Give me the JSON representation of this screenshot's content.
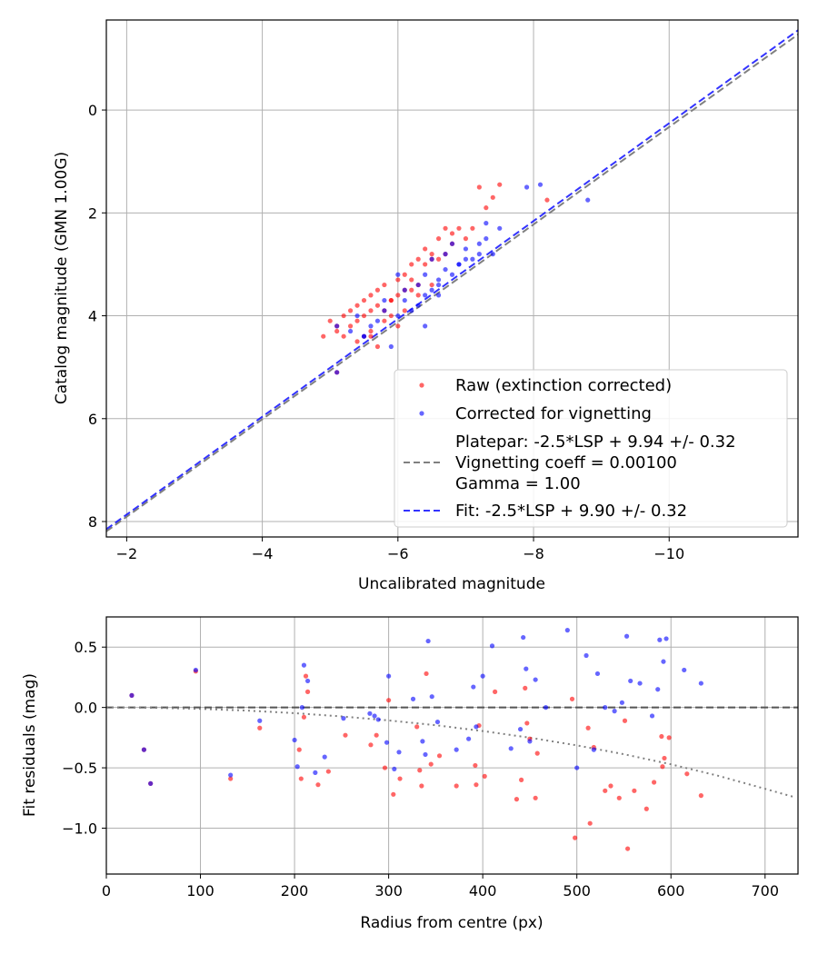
{
  "chart_data": [
    {
      "type": "scatter",
      "title": "",
      "xlabel": "Uncalibrated magnitude",
      "ylabel": "Catalog magnitude (GMN 1.00G)",
      "xlim": [
        -1.7,
        -11.9
      ],
      "ylim": [
        8.3,
        -1.75
      ],
      "xticks": [
        -2,
        -4,
        -6,
        -8,
        -10
      ],
      "xtick_labels": [
        "−2",
        "−4",
        "−6",
        "−8",
        "−10"
      ],
      "yticks": [
        0,
        2,
        4,
        6,
        8
      ],
      "ytick_labels": [
        "0",
        "2",
        "4",
        "6",
        "8"
      ],
      "grid": true,
      "legend_position": "lower-right",
      "series": [
        {
          "name": "Raw (extinction corrected)",
          "color": "#ff0000",
          "kind": "scatter",
          "x": [
            -4.9,
            -5.0,
            -5.1,
            -5.1,
            -5.2,
            -5.2,
            -5.3,
            -5.3,
            -5.4,
            -5.4,
            -5.5,
            -5.5,
            -5.5,
            -5.6,
            -5.6,
            -5.6,
            -5.7,
            -5.7,
            -5.7,
            -5.8,
            -5.8,
            -5.8,
            -5.9,
            -5.9,
            -6.0,
            -6.0,
            -6.0,
            -6.1,
            -6.1,
            -6.1,
            -6.2,
            -6.2,
            -6.3,
            -6.3,
            -6.3,
            -6.4,
            -6.4,
            -6.5,
            -6.5,
            -6.6,
            -6.6,
            -6.7,
            -6.7,
            -6.8,
            -6.9,
            -7.0,
            -7.1,
            -7.2,
            -7.3,
            -7.4,
            -7.5,
            -5.1,
            -5.4,
            -5.6,
            -5.9,
            -6.2,
            -6.5,
            -6.8,
            -8.2
          ],
          "y": [
            4.4,
            4.1,
            4.2,
            4.3,
            4.0,
            4.4,
            3.9,
            4.2,
            3.8,
            4.1,
            3.7,
            4.0,
            4.4,
            3.6,
            3.9,
            4.3,
            3.5,
            3.8,
            4.6,
            3.9,
            3.4,
            4.1,
            3.7,
            4.0,
            3.3,
            3.6,
            4.2,
            3.2,
            3.5,
            3.9,
            3.0,
            3.3,
            2.9,
            3.4,
            3.6,
            2.7,
            3.0,
            2.8,
            3.4,
            2.5,
            2.9,
            2.3,
            2.8,
            2.6,
            2.3,
            2.5,
            2.3,
            1.5,
            1.9,
            1.7,
            1.45,
            5.1,
            4.5,
            4.4,
            3.7,
            3.5,
            2.9,
            2.4,
            1.75
          ]
        },
        {
          "name": "Corrected for vignetting",
          "color": "#0000ff",
          "kind": "scatter",
          "x": [
            -5.1,
            -5.3,
            -5.4,
            -5.5,
            -5.6,
            -5.7,
            -5.8,
            -5.9,
            -6.0,
            -6.1,
            -6.1,
            -6.2,
            -6.3,
            -6.3,
            -6.4,
            -6.4,
            -6.5,
            -6.5,
            -6.6,
            -6.6,
            -6.7,
            -6.7,
            -6.8,
            -6.8,
            -6.9,
            -7.0,
            -7.0,
            -7.1,
            -7.2,
            -7.2,
            -7.3,
            -7.4,
            -7.5,
            -5.5,
            -5.8,
            -6.0,
            -6.4,
            -6.9,
            -7.9,
            -8.1,
            -8.8,
            -5.1,
            -6.6,
            -7.3
          ],
          "y": [
            4.2,
            4.3,
            4.0,
            4.4,
            4.2,
            4.1,
            3.9,
            4.6,
            4.0,
            3.7,
            3.5,
            3.9,
            3.4,
            3.8,
            3.2,
            3.6,
            3.5,
            2.9,
            3.3,
            3.6,
            3.1,
            2.8,
            3.2,
            2.6,
            3.0,
            2.9,
            2.7,
            2.9,
            2.8,
            2.6,
            2.5,
            2.8,
            2.3,
            4.4,
            3.7,
            3.2,
            4.2,
            3.0,
            1.5,
            1.45,
            1.75,
            5.1,
            3.4,
            2.2
          ]
        },
        {
          "name": "Platepar: -2.5*LSP + 9.94 +/- 0.32\nVignetting coeff = 0.00100\nGamma = 1.00",
          "color": "#808080",
          "kind": "line",
          "x": [
            -1.7,
            -11.9
          ],
          "y": [
            8.19,
            -1.47
          ]
        },
        {
          "name": "Fit: -2.5*LSP + 9.90 +/- 0.32",
          "color": "#0000ff",
          "kind": "line",
          "x": [
            -1.7,
            -11.9
          ],
          "y": [
            8.15,
            -1.55
          ]
        }
      ]
    },
    {
      "type": "scatter",
      "title": "",
      "xlabel": "Radius from centre (px)",
      "ylabel": "Fit residuals (mag)",
      "xlim": [
        0,
        735
      ],
      "ylim": [
        -1.38,
        0.75
      ],
      "xticks": [
        0,
        100,
        200,
        300,
        400,
        500,
        600,
        700
      ],
      "xtick_labels": [
        "0",
        "100",
        "200",
        "300",
        "400",
        "500",
        "600",
        "700"
      ],
      "yticks": [
        0.5,
        0.0,
        -0.5,
        -1.0
      ],
      "ytick_labels": [
        "0.5",
        "0.0",
        "−0.5",
        "−1.0"
      ],
      "grid": true,
      "series": [
        {
          "name": "Raw (extinction corrected)",
          "color": "#ff0000",
          "kind": "scatter",
          "x": [
            27,
            40,
            47,
            95,
            132,
            163,
            205,
            207,
            210,
            212,
            214,
            225,
            236,
            254,
            281,
            287,
            296,
            300,
            305,
            312,
            330,
            333,
            335,
            340,
            345,
            354,
            372,
            392,
            393,
            396,
            402,
            413,
            436,
            441,
            445,
            447,
            450,
            456,
            458,
            495,
            498,
            512,
            514,
            518,
            530,
            536,
            545,
            551,
            554,
            561,
            574,
            582,
            590,
            591,
            593,
            598,
            617,
            632
          ],
          "y": [
            0.1,
            -0.35,
            -0.63,
            0.3,
            -0.59,
            -0.17,
            -0.35,
            -0.59,
            -0.08,
            0.26,
            0.13,
            -0.64,
            -0.53,
            -0.23,
            -0.31,
            -0.23,
            -0.5,
            0.06,
            -0.72,
            -0.59,
            -0.16,
            -0.52,
            -0.65,
            0.28,
            -0.47,
            -0.4,
            -0.65,
            -0.48,
            -0.64,
            -0.15,
            -0.57,
            0.13,
            -0.76,
            -0.6,
            0.16,
            -0.13,
            -0.26,
            -0.75,
            -0.38,
            0.07,
            -1.08,
            -0.17,
            -0.96,
            -0.33,
            -0.69,
            -0.65,
            -0.75,
            -0.11,
            -1.17,
            -0.69,
            -0.84,
            -0.62,
            -0.24,
            -0.49,
            -0.42,
            -0.25,
            -0.55,
            -0.73
          ]
        },
        {
          "name": "Corrected for vignetting",
          "color": "#0000ff",
          "kind": "scatter",
          "x": [
            27,
            40,
            47,
            95,
            132,
            163,
            200,
            203,
            208,
            210,
            214,
            222,
            232,
            252,
            280,
            285,
            289,
            298,
            300,
            306,
            311,
            326,
            336,
            339,
            342,
            346,
            352,
            372,
            385,
            390,
            393,
            400,
            410,
            430,
            440,
            443,
            446,
            450,
            456,
            467,
            490,
            500,
            510,
            518,
            522,
            530,
            540,
            548,
            553,
            557,
            567,
            580,
            586,
            588,
            592,
            595,
            614,
            632
          ],
          "y": [
            0.1,
            -0.35,
            -0.63,
            0.31,
            -0.56,
            -0.11,
            -0.27,
            -0.49,
            0.0,
            0.35,
            0.22,
            -0.54,
            -0.41,
            -0.09,
            -0.05,
            -0.07,
            -0.1,
            -0.29,
            0.26,
            -0.51,
            -0.37,
            0.07,
            -0.28,
            -0.39,
            0.55,
            0.09,
            -0.12,
            -0.35,
            -0.26,
            0.17,
            -0.16,
            0.26,
            0.51,
            -0.34,
            -0.18,
            0.58,
            0.32,
            -0.28,
            0.23,
            0.0,
            0.64,
            -0.5,
            0.43,
            -0.35,
            0.28,
            0.0,
            -0.03,
            0.04,
            0.59,
            0.22,
            0.2,
            -0.07,
            0.15,
            0.56,
            0.38,
            0.57,
            0.31,
            0.2
          ]
        },
        {
          "name": "zero",
          "color": "#555555",
          "kind": "dashed-line",
          "x": [
            0,
            735
          ],
          "y": [
            0,
            0
          ]
        },
        {
          "name": "vignetting model",
          "color": "#808080",
          "kind": "dotted-curve",
          "x": [
            0,
            50,
            100,
            150,
            200,
            250,
            300,
            350,
            400,
            450,
            500,
            550,
            600,
            650,
            700,
            730
          ],
          "y": [
            0.0,
            -0.003,
            -0.012,
            -0.026,
            -0.047,
            -0.074,
            -0.107,
            -0.147,
            -0.195,
            -0.25,
            -0.314,
            -0.387,
            -0.471,
            -0.566,
            -0.674,
            -0.74
          ]
        }
      ]
    }
  ]
}
